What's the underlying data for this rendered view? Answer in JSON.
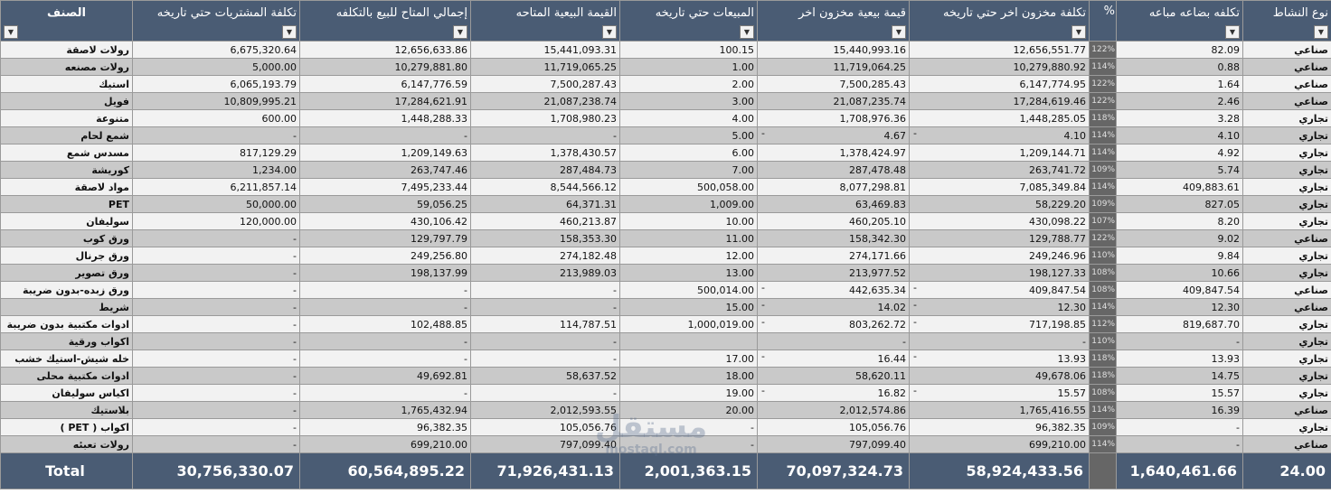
{
  "headers": {
    "category": "الصنف",
    "purchases_cost": "تكلفة المشتريات حتي تاريخه",
    "available_cost": "إجمالي المتاح للبيع بالتكلفه",
    "available_sale": "القيمة البيعية المتاحه",
    "sales": "المبيعات حتي تاريخه",
    "last_stock_sale": "قيمة بيعية مخزون اخر",
    "last_stock_cost": "تكلفة مخزون اخر حتي تاريخه",
    "pct": "%",
    "goods_cost": "تكلفه بضاعه مباعه",
    "activity": "نوع النشاط"
  },
  "rows": [
    {
      "category": "رولات لاصقة",
      "purchases": "6,675,320.64",
      "available_cost": "12,656,633.86",
      "available_sale": "15,441,093.31",
      "sales": "100.15",
      "last_sale": "15,440,993.16",
      "last_cost": "12,656,551.77",
      "pct": "122%",
      "goods_cost": "82.09",
      "type": "صناعي"
    },
    {
      "category": "رولات مصنعه",
      "purchases": "5,000.00",
      "available_cost": "10,279,881.80",
      "available_sale": "11,719,065.25",
      "sales": "1.00",
      "last_sale": "11,719,064.25",
      "last_cost": "10,279,880.92",
      "pct": "114%",
      "goods_cost": "0.88",
      "type": "صناعي"
    },
    {
      "category": "استيك",
      "purchases": "6,065,193.79",
      "available_cost": "6,147,776.59",
      "available_sale": "7,500,287.43",
      "sales": "2.00",
      "last_sale": "7,500,285.43",
      "last_cost": "6,147,774.95",
      "pct": "122%",
      "goods_cost": "1.64",
      "type": "صناعي"
    },
    {
      "category": "فويل",
      "purchases": "10,809,995.21",
      "available_cost": "17,284,621.91",
      "available_sale": "21,087,238.74",
      "sales": "3.00",
      "last_sale": "21,087,235.74",
      "last_cost": "17,284,619.46",
      "pct": "122%",
      "goods_cost": "2.46",
      "type": "صناعي"
    },
    {
      "category": "متنوعة",
      "purchases": "600.00",
      "available_cost": "1,448,288.33",
      "available_sale": "1,708,980.23",
      "sales": "4.00",
      "last_sale": "1,708,976.36",
      "last_cost": "1,448,285.05",
      "pct": "118%",
      "goods_cost": "3.28",
      "type": "تجاري"
    },
    {
      "category": "شمع لحام",
      "purchases": "-",
      "available_cost": "-",
      "available_sale": "-",
      "sales": "5.00",
      "last_sale": "4.67",
      "last_cost": "4.10",
      "pct": "114%",
      "goods_cost": "4.10",
      "type": "تجاري",
      "lead": true
    },
    {
      "category": "مسدس شمع",
      "purchases": "817,129.29",
      "available_cost": "1,209,149.63",
      "available_sale": "1,378,430.57",
      "sales": "6.00",
      "last_sale": "1,378,424.97",
      "last_cost": "1,209,144.71",
      "pct": "114%",
      "goods_cost": "4.92",
      "type": "تجاري"
    },
    {
      "category": "كوريشة",
      "purchases": "1,234.00",
      "available_cost": "263,747.46",
      "available_sale": "287,484.73",
      "sales": "7.00",
      "last_sale": "287,478.48",
      "last_cost": "263,741.72",
      "pct": "109%",
      "goods_cost": "5.74",
      "type": "تجاري"
    },
    {
      "category": "مواد لاصقة",
      "purchases": "6,211,857.14",
      "available_cost": "7,495,233.44",
      "available_sale": "8,544,566.12",
      "sales": "500,058.00",
      "last_sale": "8,077,298.81",
      "last_cost": "7,085,349.84",
      "pct": "114%",
      "goods_cost": "409,883.61",
      "type": "تجاري"
    },
    {
      "category": "PET",
      "purchases": "50,000.00",
      "available_cost": "59,056.25",
      "available_sale": "64,371.31",
      "sales": "1,009.00",
      "last_sale": "63,469.83",
      "last_cost": "58,229.20",
      "pct": "109%",
      "goods_cost": "827.05",
      "type": "تجاري"
    },
    {
      "category": "سوليفان",
      "purchases": "120,000.00",
      "available_cost": "430,106.42",
      "available_sale": "460,213.87",
      "sales": "10.00",
      "last_sale": "460,205.10",
      "last_cost": "430,098.22",
      "pct": "107%",
      "goods_cost": "8.20",
      "type": "تجاري"
    },
    {
      "category": "ورق كوب",
      "purchases": "-",
      "available_cost": "129,797.79",
      "available_sale": "158,353.30",
      "sales": "11.00",
      "last_sale": "158,342.30",
      "last_cost": "129,788.77",
      "pct": "122%",
      "goods_cost": "9.02",
      "type": "صناعي"
    },
    {
      "category": "ورق جرنال",
      "purchases": "-",
      "available_cost": "249,256.80",
      "available_sale": "274,182.48",
      "sales": "12.00",
      "last_sale": "274,171.66",
      "last_cost": "249,246.96",
      "pct": "110%",
      "goods_cost": "9.84",
      "type": "تجاري"
    },
    {
      "category": "ورق تصوير",
      "purchases": "-",
      "available_cost": "198,137.99",
      "available_sale": "213,989.03",
      "sales": "13.00",
      "last_sale": "213,977.52",
      "last_cost": "198,127.33",
      "pct": "108%",
      "goods_cost": "10.66",
      "type": "تجاري"
    },
    {
      "category": "ورق زبده-بدون ضريبة",
      "purchases": "-",
      "available_cost": "-",
      "available_sale": "-",
      "sales": "500,014.00",
      "last_sale": "442,635.34",
      "last_cost": "409,847.54",
      "pct": "108%",
      "goods_cost": "409,847.54",
      "type": "صناعي",
      "lead": true
    },
    {
      "category": "شريط",
      "purchases": "-",
      "available_cost": "-",
      "available_sale": "-",
      "sales": "15.00",
      "last_sale": "14.02",
      "last_cost": "12.30",
      "pct": "114%",
      "goods_cost": "12.30",
      "type": "صناعي",
      "lead": true
    },
    {
      "category": "ادوات مكتبية بدون ضريبة",
      "purchases": "-",
      "available_cost": "102,488.85",
      "available_sale": "114,787.51",
      "sales": "1,000,019.00",
      "last_sale": "803,262.72",
      "last_cost": "717,198.85",
      "pct": "112%",
      "goods_cost": "819,687.70",
      "type": "تجاري",
      "lead": true
    },
    {
      "category": "اكواب ورقية",
      "purchases": "-",
      "available_cost": "-",
      "available_sale": "-",
      "sales": "",
      "last_sale": "-",
      "last_cost": "-",
      "pct": "110%",
      "goods_cost": "-",
      "type": "تجاري"
    },
    {
      "category": "خله شيش-استيك خشب",
      "purchases": "-",
      "available_cost": "-",
      "available_sale": "-",
      "sales": "17.00",
      "last_sale": "16.44",
      "last_cost": "13.93",
      "pct": "118%",
      "goods_cost": "13.93",
      "type": "تجاري",
      "lead": true
    },
    {
      "category": "ادوات مكتبية محلى",
      "purchases": "-",
      "available_cost": "49,692.81",
      "available_sale": "58,637.52",
      "sales": "18.00",
      "last_sale": "58,620.11",
      "last_cost": "49,678.06",
      "pct": "118%",
      "goods_cost": "14.75",
      "type": "تجاري"
    },
    {
      "category": "اكياس سوليفان",
      "purchases": "-",
      "available_cost": "-",
      "available_sale": "-",
      "sales": "19.00",
      "last_sale": "16.82",
      "last_cost": "15.57",
      "pct": "108%",
      "goods_cost": "15.57",
      "type": "تجاري",
      "lead": true
    },
    {
      "category": "بلاستيك",
      "purchases": "-",
      "available_cost": "1,765,432.94",
      "available_sale": "2,012,593.55",
      "sales": "20.00",
      "last_sale": "2,012,574.86",
      "last_cost": "1,765,416.55",
      "pct": "114%",
      "goods_cost": "16.39",
      "type": "صناعي"
    },
    {
      "category": "( PET ) اكواب",
      "purchases": "-",
      "available_cost": "96,382.35",
      "available_sale": "105,056.76",
      "sales": "-",
      "last_sale": "105,056.76",
      "last_cost": "96,382.35",
      "pct": "109%",
      "goods_cost": "-",
      "type": "تجاري"
    },
    {
      "category": "رولات تعبئه",
      "purchases": "-",
      "available_cost": "699,210.00",
      "available_sale": "797,099.40",
      "sales": "-",
      "last_sale": "797,099.40",
      "last_cost": "699,210.00",
      "pct": "114%",
      "goods_cost": "-",
      "type": "صناعي"
    }
  ],
  "totals": {
    "label": "Total",
    "purchases": "30,756,330.07",
    "available_cost": "60,564,895.22",
    "available_sale": "71,926,431.13",
    "sales": "2,001,363.15",
    "last_sale": "70,097,324.73",
    "last_cost": "58,924,433.56",
    "goods_cost": "1,640,461.66",
    "type": "24.00"
  },
  "watermark": {
    "logo": "مستقل",
    "url": "mostaql.com"
  },
  "icons": {
    "filter": "filter-dropdown-icon"
  }
}
